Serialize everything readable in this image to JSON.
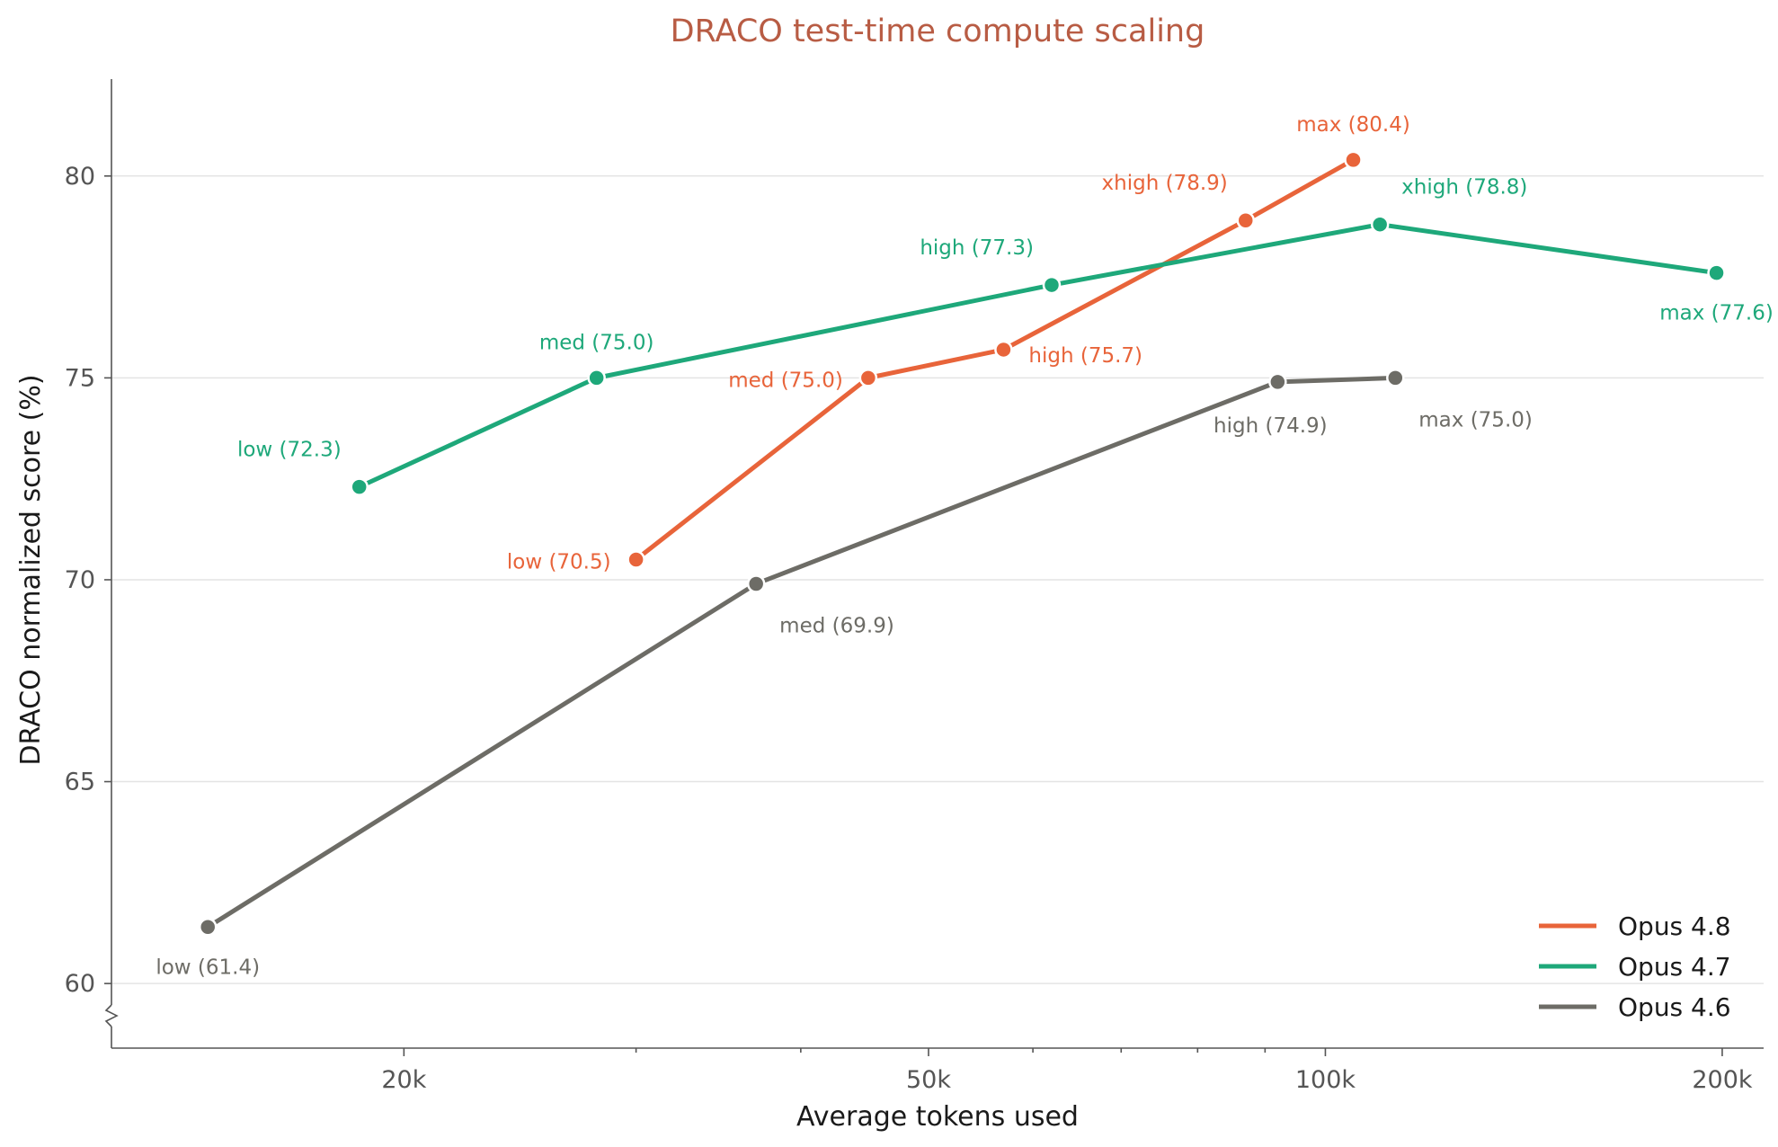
{
  "chart_data": {
    "type": "line",
    "title": "DRACO test-time compute scaling",
    "xlabel": "Average tokens used",
    "ylabel": "DRACO normalized score (%)",
    "xscale": "log",
    "xlim": [
      12000,
      215000
    ],
    "ylim": [
      58.4,
      82.4
    ],
    "xticks": [
      {
        "value": 20000,
        "label": "20k"
      },
      {
        "value": 50000,
        "label": "50k"
      },
      {
        "value": 100000,
        "label": "100k"
      },
      {
        "value": 200000,
        "label": "200k"
      }
    ],
    "xminor": [
      30000,
      40000,
      60000,
      70000,
      80000,
      90000
    ],
    "yticks": [
      60,
      65,
      70,
      75,
      80
    ],
    "y_axis_break": true,
    "grid": "horizontal",
    "legend": "bottom-right",
    "series": [
      {
        "name": "Opus 4.8",
        "color": "#e8643a",
        "points": [
          {
            "x": 30000,
            "y": 70.5,
            "label": "low (70.5)",
            "pos": "left"
          },
          {
            "x": 45000,
            "y": 75.0,
            "label": "med (75.0)",
            "pos": "left"
          },
          {
            "x": 57000,
            "y": 75.7,
            "label": "high (75.7)",
            "pos": "right"
          },
          {
            "x": 87000,
            "y": 78.9,
            "label": "xhigh (78.9)",
            "pos": "upper-left"
          },
          {
            "x": 105000,
            "y": 80.4,
            "label": "max (80.4)",
            "pos": "above"
          }
        ]
      },
      {
        "name": "Opus 4.7",
        "color": "#1ea87a",
        "points": [
          {
            "x": 18500,
            "y": 72.3,
            "label": "low (72.3)",
            "pos": "upper-left"
          },
          {
            "x": 28000,
            "y": 75.0,
            "label": "med (75.0)",
            "pos": "above"
          },
          {
            "x": 62000,
            "y": 77.3,
            "label": "high (77.3)",
            "pos": "upper-left"
          },
          {
            "x": 110000,
            "y": 78.8,
            "label": "xhigh (78.8)",
            "pos": "upper-right"
          },
          {
            "x": 198000,
            "y": 77.6,
            "label": "max (77.6)",
            "pos": "below"
          }
        ]
      },
      {
        "name": "Opus 4.6",
        "color": "#6d6c66",
        "points": [
          {
            "x": 14200,
            "y": 61.4,
            "label": "low (61.4)",
            "pos": "below"
          },
          {
            "x": 37000,
            "y": 69.9,
            "label": "med (69.9)",
            "pos": "lower-right"
          },
          {
            "x": 92000,
            "y": 74.9,
            "label": "high (74.9)",
            "pos": "lower-left"
          },
          {
            "x": 113000,
            "y": 75.0,
            "label": "max (75.0)",
            "pos": "lower-right"
          }
        ]
      }
    ]
  }
}
